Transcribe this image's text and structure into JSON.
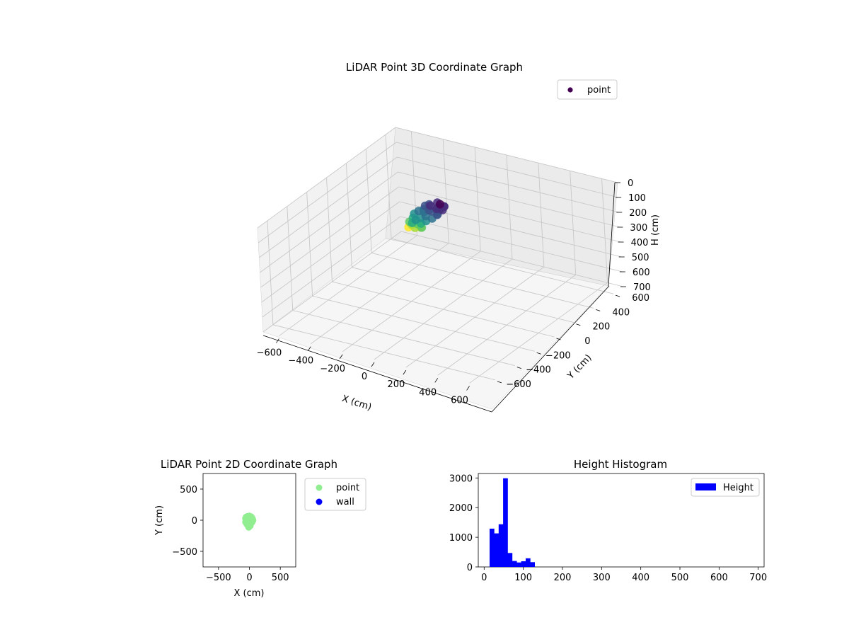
{
  "chart_data": [
    {
      "type": "scatter",
      "projection": "3d",
      "title": "LiDAR Point 3D Coordinate Graph",
      "xlabel": "X (cm)",
      "ylabel": "Y (cm)",
      "zlabel": "H (cm)",
      "xlim": [
        -700,
        700
      ],
      "ylim": [
        -700,
        700
      ],
      "zlim": [
        0,
        700
      ],
      "z_inverted": true,
      "x_ticks": [
        "−600",
        "−400",
        "−200",
        "0",
        "200",
        "400",
        "600"
      ],
      "y_ticks": [
        "−600",
        "−400",
        "−200",
        "0",
        "200",
        "400",
        "600"
      ],
      "z_ticks": [
        "0",
        "100",
        "200",
        "300",
        "400",
        "500",
        "600",
        "700"
      ],
      "grid": true,
      "colormap": "viridis",
      "legend": {
        "placement": "top-right",
        "entries": [
          "point"
        ]
      },
      "cluster": {
        "x_range": [
          -130,
          40
        ],
        "y_range": [
          -130,
          60
        ],
        "h_range": [
          10,
          125
        ]
      },
      "series": [
        {
          "name": "point",
          "color": "#440154",
          "points": [
            [
              -10,
              40,
              15
            ],
            [
              20,
              30,
              18
            ],
            [
              0,
              -10,
              20
            ],
            [
              -40,
              60,
              22
            ],
            [
              30,
              0,
              25
            ],
            [
              -60,
              20,
              28
            ],
            [
              10,
              50,
              30
            ],
            [
              -20,
              -30,
              32
            ],
            [
              -80,
              40,
              35
            ],
            [
              0,
              20,
              38
            ],
            [
              20,
              -40,
              40
            ],
            [
              -50,
              -10,
              42
            ],
            [
              -100,
              30,
              45
            ],
            [
              -30,
              50,
              45
            ],
            [
              10,
              -20,
              48
            ],
            [
              -70,
              -30,
              50
            ],
            [
              -10,
              10,
              50
            ],
            [
              -90,
              0,
              52
            ],
            [
              -40,
              -60,
              55
            ],
            [
              -110,
              -20,
              58
            ],
            [
              0,
              -60,
              60
            ],
            [
              -60,
              -80,
              62
            ],
            [
              -120,
              -50,
              65
            ],
            [
              -20,
              -90,
              68
            ],
            [
              -80,
              -100,
              72
            ],
            [
              -110,
              -80,
              76
            ],
            [
              -40,
              -110,
              80
            ],
            [
              -90,
              -120,
              85
            ],
            [
              -60,
              -110,
              90
            ],
            [
              -120,
              -100,
              95
            ],
            [
              -30,
              -120,
              100
            ],
            [
              -100,
              -110,
              105
            ],
            [
              -70,
              -125,
              110
            ],
            [
              -50,
              -100,
              115
            ],
            [
              -115,
              -120,
              120
            ]
          ]
        }
      ]
    },
    {
      "type": "scatter",
      "title": "LiDAR Point 2D Coordinate Graph",
      "xlabel": "X (cm)",
      "ylabel": "Y (cm)",
      "xlim": [
        -750,
        750
      ],
      "ylim": [
        -750,
        750
      ],
      "x_ticks": [
        "−500",
        "0",
        "500"
      ],
      "y_ticks": [
        "−500",
        "0",
        "500"
      ],
      "legend": {
        "placement": "outside-right",
        "entries": [
          "point",
          "wall"
        ]
      },
      "series": [
        {
          "name": "point",
          "color": "#90ee90",
          "points": [
            [
              -30,
              60
            ],
            [
              -50,
              50
            ],
            [
              -60,
              30
            ],
            [
              -55,
              0
            ],
            [
              -60,
              -30
            ],
            [
              -40,
              -60
            ],
            [
              -20,
              -80
            ],
            [
              -10,
              -110
            ],
            [
              10,
              -90
            ],
            [
              20,
              -60
            ],
            [
              40,
              -30
            ],
            [
              55,
              0
            ],
            [
              45,
              30
            ],
            [
              25,
              55
            ],
            [
              0,
              65
            ],
            [
              -20,
              40
            ],
            [
              -30,
              10
            ],
            [
              -10,
              -20
            ],
            [
              10,
              10
            ],
            [
              20,
              -10
            ],
            [
              -40,
              -30
            ],
            [
              30,
              20
            ],
            [
              0,
              -40
            ],
            [
              -15,
              20
            ]
          ]
        },
        {
          "name": "wall",
          "color": "#0000ff",
          "points": []
        }
      ]
    },
    {
      "type": "bar",
      "subtype": "histogram",
      "title": "Height Histogram",
      "xlim": [
        -15,
        715
      ],
      "ylim": [
        0,
        3150
      ],
      "x_ticks": [
        "0",
        "100",
        "200",
        "300",
        "400",
        "500",
        "600",
        "700"
      ],
      "y_ticks": [
        "0",
        "1000",
        "2000",
        "3000"
      ],
      "legend": {
        "placement": "top-right",
        "entries": [
          "Height"
        ]
      },
      "series": [
        {
          "name": "Height",
          "color": "#0000ff",
          "bin_width": 11.5,
          "bins": [
            {
              "x": 14,
              "value": 1290
            },
            {
              "x": 25.5,
              "value": 1130
            },
            {
              "x": 37,
              "value": 1440
            },
            {
              "x": 48.5,
              "value": 2990
            },
            {
              "x": 60,
              "value": 470
            },
            {
              "x": 71.5,
              "value": 200
            },
            {
              "x": 83,
              "value": 150
            },
            {
              "x": 94.5,
              "value": 190
            },
            {
              "x": 106,
              "value": 290
            },
            {
              "x": 117.5,
              "value": 160
            }
          ]
        }
      ]
    }
  ]
}
